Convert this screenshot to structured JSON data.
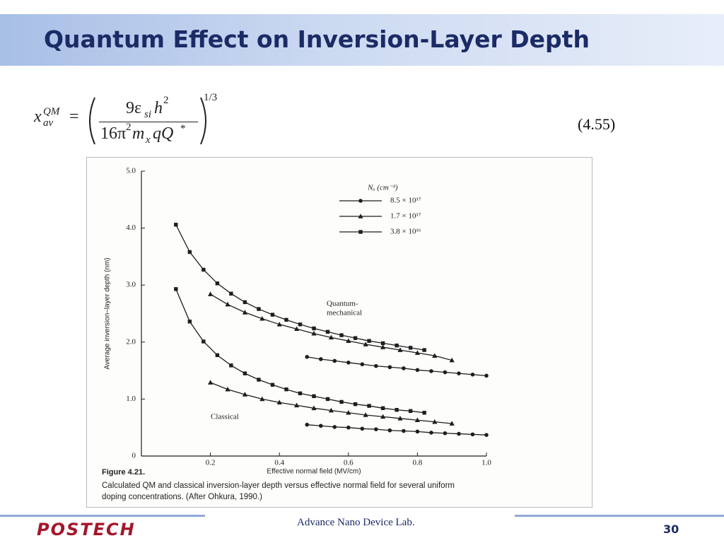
{
  "header": {
    "title": "Quantum Effect on Inversion-Layer Depth"
  },
  "equation": {
    "lhs": "x",
    "lhs_sub": "av",
    "lhs_sup": "QM",
    "equals": "=",
    "numerator": [
      "9ε",
      "si",
      "h",
      "2"
    ],
    "denominator": [
      "16π",
      "2",
      "m",
      "x",
      "qQ",
      "*"
    ],
    "exponent": "1/3",
    "number": "(4.55)"
  },
  "chart_data": {
    "type": "line",
    "ylabel": "Average inversion–layer depth (nm)",
    "xlabel": "Effective normal field (MV/cm)",
    "figure_label": "Figure 4.21.",
    "caption": [
      "Calculated QM and classical inversion-layer depth versus effective normal field for several uniform",
      "doping concentrations. (After Ohkura, 1990.)"
    ],
    "legend_title": "Nₐ (cm⁻³)",
    "annotations": {
      "quantum": [
        "Quantum-",
        "mechanical"
      ],
      "classical": "Classical"
    },
    "xlim": [
      0,
      1.0
    ],
    "ylim": [
      0,
      5.0
    ],
    "xticks": [
      {
        "value": 0,
        "label": "0"
      },
      0.2,
      0.4,
      0.6,
      0.8,
      {
        "value": 1.0,
        "label": "1.0"
      }
    ],
    "yticks": [
      {
        "value": 0,
        "label": "0"
      },
      {
        "value": 1,
        "label": "1.0"
      },
      {
        "value": 2,
        "label": "2.0"
      },
      {
        "value": 3,
        "label": "3.0"
      },
      {
        "value": 4,
        "label": "4.0"
      },
      {
        "value": 5,
        "label": "5.0"
      }
    ],
    "color": "#1e1e1e",
    "series": [
      {
        "name": "8.5 × 10¹⁷",
        "marker": "circle",
        "x": [
          0.48,
          0.52,
          0.56,
          0.6,
          0.64,
          0.68,
          0.72,
          0.76,
          0.8,
          0.84,
          0.88,
          0.92,
          0.96,
          1.0
        ],
        "quantum_mechanical": [
          1.74,
          1.7,
          1.67,
          1.64,
          1.61,
          1.58,
          1.56,
          1.54,
          1.51,
          1.49,
          1.47,
          1.45,
          1.43,
          1.41
        ],
        "classical": [
          0.55,
          0.53,
          0.51,
          0.5,
          0.48,
          0.47,
          0.45,
          0.44,
          0.43,
          0.41,
          0.4,
          0.39,
          0.38,
          0.37
        ]
      },
      {
        "name": "1.7 × 10¹⁷",
        "marker": "triangle",
        "x": [
          0.2,
          0.25,
          0.3,
          0.35,
          0.4,
          0.45,
          0.5,
          0.55,
          0.6,
          0.65,
          0.7,
          0.75,
          0.8,
          0.85,
          0.9
        ],
        "quantum_mechanical": [
          2.84,
          2.66,
          2.52,
          2.41,
          2.31,
          2.23,
          2.15,
          2.08,
          2.02,
          1.96,
          1.91,
          1.86,
          1.81,
          1.76,
          1.68
        ],
        "classical": [
          1.29,
          1.17,
          1.08,
          1.0,
          0.94,
          0.89,
          0.84,
          0.8,
          0.76,
          0.72,
          0.69,
          0.66,
          0.63,
          0.6,
          0.57
        ]
      },
      {
        "name": "3.8 × 10¹⁶",
        "marker": "square",
        "x": [
          0.1,
          0.14,
          0.18,
          0.22,
          0.26,
          0.3,
          0.34,
          0.38,
          0.42,
          0.46,
          0.5,
          0.54,
          0.58,
          0.62,
          0.66,
          0.7,
          0.74,
          0.78,
          0.82
        ],
        "quantum_mechanical": [
          4.06,
          3.58,
          3.27,
          3.03,
          2.85,
          2.7,
          2.58,
          2.48,
          2.39,
          2.31,
          2.24,
          2.18,
          2.12,
          2.07,
          2.02,
          1.98,
          1.94,
          1.9,
          1.86
        ],
        "classical": [
          2.93,
          2.36,
          2.01,
          1.77,
          1.59,
          1.45,
          1.34,
          1.25,
          1.17,
          1.1,
          1.05,
          1.0,
          0.95,
          0.91,
          0.88,
          0.84,
          0.81,
          0.79,
          0.76
        ]
      }
    ]
  },
  "footer": {
    "logo": "POSTECH",
    "lab": "Advance Nano Device Lab.",
    "page": "30"
  }
}
